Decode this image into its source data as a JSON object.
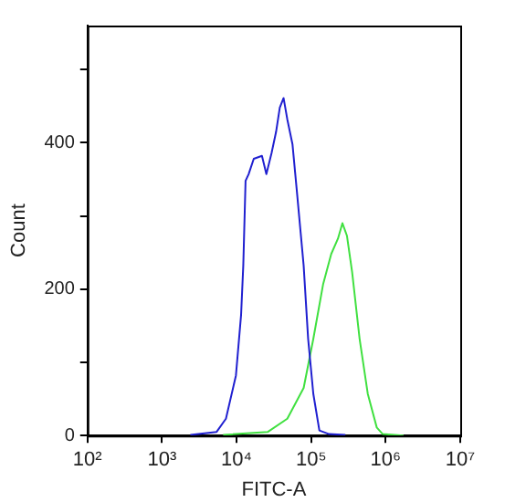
{
  "chart_data": {
    "type": "line",
    "xlabel": "FITC-A",
    "ylabel": "Count",
    "log": "x",
    "grid": false,
    "marker": "none",
    "line_style": "solid",
    "xlim": [
      100,
      10000000
    ],
    "xticks": [
      {
        "value": 100,
        "label": "10²"
      },
      {
        "value": 1000,
        "label": "10³"
      },
      {
        "value": 10000,
        "label": "10⁴"
      },
      {
        "value": 100000,
        "label": "10⁵"
      },
      {
        "value": 1000000,
        "label": "10⁶"
      },
      {
        "value": 10000000,
        "label": "10⁷"
      }
    ],
    "ylim": [
      0,
      560
    ],
    "yticks": [
      0,
      {
        "value": 100,
        "label": null
      },
      200,
      {
        "value": 300,
        "label": null
      },
      400,
      {
        "value": 500,
        "label": null
      }
    ],
    "series": [
      {
        "color": "#2020d0",
        "x": [
          2400,
          5400,
          7200,
          9800,
          11500,
          12300,
          13200,
          14500,
          17000,
          21900,
          25100,
          29500,
          33900,
          38000,
          42700,
          47900,
          56200,
          64600,
          79400,
          91200,
          107000,
          129000,
          174000,
          288000
        ],
        "values": [
          1,
          5,
          23,
          82,
          165,
          232,
          348,
          357,
          378,
          382,
          357,
          386,
          415,
          448,
          461,
          432,
          398,
          332,
          232,
          132,
          57,
          7,
          2,
          1
        ]
      },
      {
        "color": "#40e040",
        "x": [
          6600,
          26300,
          47900,
          79400,
          107000,
          145000,
          186000,
          229000,
          263000,
          302000,
          355000,
          447000,
          575000,
          759000,
          912000,
          1740000
        ],
        "values": [
          1,
          5,
          23,
          65,
          132,
          207,
          248,
          269,
          290,
          273,
          223,
          132,
          57,
          11,
          2,
          0
        ]
      }
    ]
  }
}
